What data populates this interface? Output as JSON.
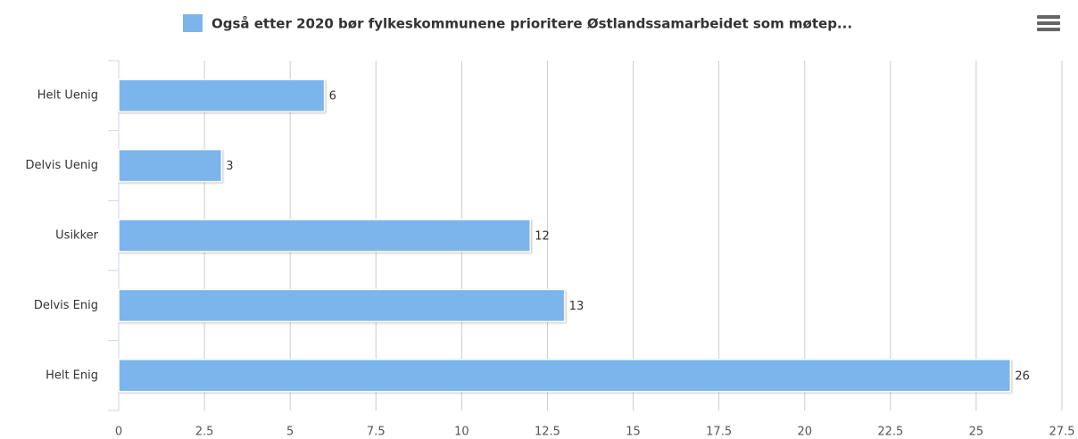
{
  "chart_data": {
    "type": "bar",
    "orientation": "horizontal",
    "categories": [
      "Helt Uenig",
      "Delvis Uenig",
      "Usikker",
      "Delvis Enig",
      "Helt Enig"
    ],
    "series": [
      {
        "name": "Også etter 2020 bør fylkeskommunene prioritere Østlandssamarbeidet som møtep...",
        "color": "#7cb5ec",
        "values": [
          6,
          3,
          12,
          13,
          26
        ]
      }
    ],
    "xlim": [
      0,
      27.5
    ],
    "xticks": [
      0,
      2.5,
      5,
      7.5,
      10,
      12.5,
      15,
      17.5,
      20,
      22.5,
      25,
      27.5
    ],
    "grid": true,
    "legend": "top",
    "data_labels": true
  }
}
